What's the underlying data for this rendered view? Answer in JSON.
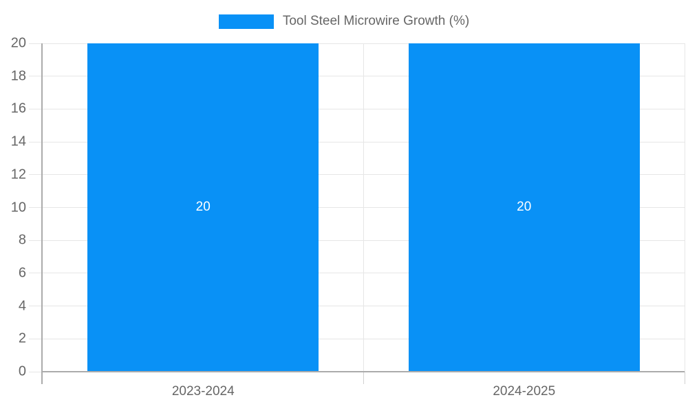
{
  "chart_data": {
    "type": "bar",
    "title": "Tool Steel Microwire Growth (%)",
    "categories": [
      "2023-2024",
      "2024-2025"
    ],
    "values": [
      20,
      20
    ],
    "value_labels": [
      "20",
      "20"
    ],
    "xlabel": "",
    "ylabel": "",
    "ylim": [
      0,
      20
    ],
    "ytick_step": 2,
    "ytick_labels": [
      "0",
      "2",
      "4",
      "6",
      "8",
      "10",
      "12",
      "14",
      "16",
      "18",
      "20"
    ],
    "legend_position": "top",
    "grid": "on",
    "legend_entries": [
      "Tool Steel Microwire Growth (%)"
    ]
  },
  "colors": {
    "bar": "#0991f6",
    "value_label": "#ffffff",
    "text": "#666666",
    "gridline": "#e6e6e6",
    "axis": "#ababab"
  }
}
